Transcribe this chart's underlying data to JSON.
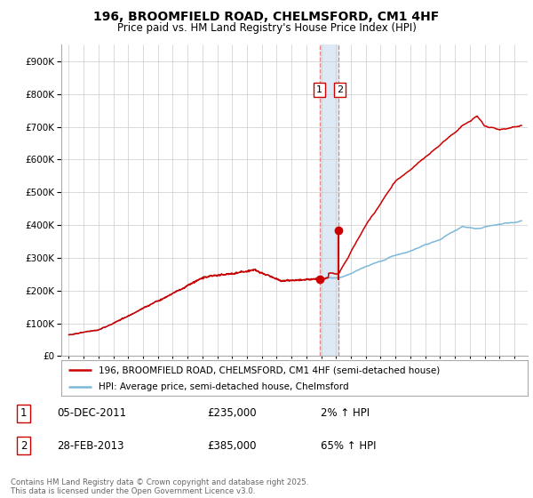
{
  "title": "196, BROOMFIELD ROAD, CHELMSFORD, CM1 4HF",
  "subtitle": "Price paid vs. HM Land Registry's House Price Index (HPI)",
  "legend_line1": "196, BROOMFIELD ROAD, CHELMSFORD, CM1 4HF (semi-detached house)",
  "legend_line2": "HPI: Average price, semi-detached house, Chelmsford",
  "transaction1_date": "05-DEC-2011",
  "transaction1_price": 235000,
  "transaction1_hpi": "2% ↑ HPI",
  "transaction2_date": "28-FEB-2013",
  "transaction2_price": 385000,
  "transaction2_hpi": "65% ↑ HPI",
  "hpi_color": "#7db8d8",
  "price_color": "#cc0000",
  "highlight_color": "#ddeaf6",
  "vline_color": "#e88080",
  "dot_color": "#cc0000",
  "bg_color": "#ffffff",
  "grid_color": "#cccccc",
  "ylim_min": 0,
  "ylim_max": 950000,
  "transaction1_year": 2011.92,
  "transaction2_year": 2013.16,
  "footer": "Contains HM Land Registry data © Crown copyright and database right 2025.\nThis data is licensed under the Open Government Licence v3.0."
}
